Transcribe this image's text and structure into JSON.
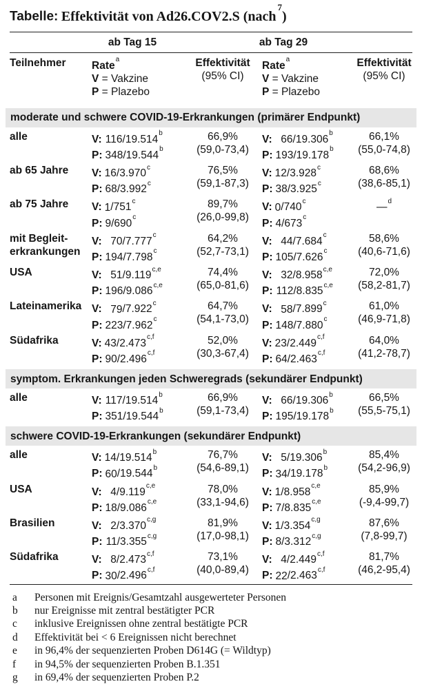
{
  "title": {
    "label": "Tabelle:",
    "text": "Effektivität von Ad26.COV2.S (nach",
    "ref": "7",
    "close": ")"
  },
  "columns": {
    "group_day15": "ab Tag 15",
    "group_day29": "ab Tag 29",
    "participant": "Teilnehmer",
    "rate": "Rate",
    "rate_sup": "a",
    "v_key": "V",
    "v_val": "= Vakzine",
    "p_key": "P",
    "p_val": "= Plazebo",
    "effectiveness": "Effektivität",
    "ci": "(95% CI)"
  },
  "sections": [
    {
      "title": "moderate und schwere COVID-19-Erkrankungen (primärer Endpunkt)",
      "rows": [
        {
          "label": "alle",
          "d15": {
            "v": [
              "116",
              "19.514",
              "b"
            ],
            "p": [
              "348",
              "19.544",
              "b"
            ],
            "eff": "66,9%",
            "eff_sup": "",
            "ci": "(59,0-73,4)"
          },
          "d29": {
            "v": [
              "66",
              "19.306",
              "b"
            ],
            "p": [
              "193",
              "19.178",
              "b"
            ],
            "eff": "66,1%",
            "eff_sup": "",
            "ci": "(55,0-74,8)"
          }
        },
        {
          "label": "ab 65 Jahre",
          "d15": {
            "v": [
              "16",
              "3.970",
              "c"
            ],
            "p": [
              "68",
              "3.992",
              "c"
            ],
            "eff": "76,5%",
            "eff_sup": "",
            "ci": "(59,1-87,3)"
          },
          "d29": {
            "v": [
              "12",
              "3.928",
              "c"
            ],
            "p": [
              "38",
              "3.925",
              "c"
            ],
            "eff": "68,6%",
            "eff_sup": "",
            "ci": "(38,6-85,1)"
          }
        },
        {
          "label": "ab 75 Jahre",
          "d15": {
            "v": [
              "1",
              "751",
              "c"
            ],
            "p": [
              "9",
              "690",
              "c"
            ],
            "eff": "89,7%",
            "eff_sup": "",
            "ci": "(26,0-99,8)"
          },
          "d29": {
            "v": [
              "0",
              "740",
              "c"
            ],
            "p": [
              "4",
              "673",
              "c"
            ],
            "eff": "—",
            "eff_sup": "d",
            "ci": ""
          }
        },
        {
          "label": "mit Begleit-\nerkrankungen",
          "d15": {
            "v": [
              "70",
              "7.777",
              "c"
            ],
            "p": [
              "194",
              "7.798",
              "c"
            ],
            "eff": "64,2%",
            "eff_sup": "",
            "ci": "(52,7-73,1)"
          },
          "d29": {
            "v": [
              "44",
              "7.684",
              "c"
            ],
            "p": [
              "105",
              "7.626",
              "c"
            ],
            "eff": "58,6%",
            "eff_sup": "",
            "ci": "(40,6-71,6)"
          }
        },
        {
          "label": "USA",
          "d15": {
            "v": [
              "51",
              "9.119",
              "c,e"
            ],
            "p": [
              "196",
              "9.086",
              "c,e"
            ],
            "eff": "74,4%",
            "eff_sup": "",
            "ci": "(65,0-81,6)"
          },
          "d29": {
            "v": [
              "32",
              "8.958",
              "c,e"
            ],
            "p": [
              "112",
              "8.835",
              "c,e"
            ],
            "eff": "72,0%",
            "eff_sup": "",
            "ci": "(58,2-81,7)"
          }
        },
        {
          "label": "Lateinamerika",
          "d15": {
            "v": [
              "79",
              "7.922",
              "c"
            ],
            "p": [
              "223",
              "7.962",
              "c"
            ],
            "eff": "64,7%",
            "eff_sup": "",
            "ci": "(54,1-73,0)"
          },
          "d29": {
            "v": [
              "58",
              "7.899",
              "c"
            ],
            "p": [
              "148",
              "7.880",
              "c"
            ],
            "eff": "61,0%",
            "eff_sup": "",
            "ci": "(46,9-71,8)"
          }
        },
        {
          "label": "Südafrika",
          "d15": {
            "v": [
              "43",
              "2.473",
              "c,f"
            ],
            "p": [
              "90",
              "2.496",
              "c,f"
            ],
            "eff": "52,0%",
            "eff_sup": "",
            "ci": "(30,3-67,4)"
          },
          "d29": {
            "v": [
              "23",
              "2.449",
              "c,f"
            ],
            "p": [
              "64",
              "2.463",
              "c,f"
            ],
            "eff": "64,0%",
            "eff_sup": "",
            "ci": "(41,2-78,7)"
          }
        }
      ]
    },
    {
      "title": "symptom. Erkrankungen jeden Schweregrads (sekundärer Endpunkt)",
      "rows": [
        {
          "label": "alle",
          "d15": {
            "v": [
              "117",
              "19.514",
              "b"
            ],
            "p": [
              "351",
              "19.544",
              "b"
            ],
            "eff": "66,9%",
            "eff_sup": "",
            "ci": "(59,1-73,4)"
          },
          "d29": {
            "v": [
              "66",
              "19.306",
              "b"
            ],
            "p": [
              "195",
              "19.178",
              "b"
            ],
            "eff": "66,5%",
            "eff_sup": "",
            "ci": "(55,5-75,1)"
          }
        }
      ]
    },
    {
      "title": "schwere COVID-19-Erkrankungen (sekundärer Endpunkt)",
      "rows": [
        {
          "label": "alle",
          "d15": {
            "v": [
              "14",
              "19.514",
              "b"
            ],
            "p": [
              "60",
              "19.544",
              "b"
            ],
            "eff": "76,7%",
            "eff_sup": "",
            "ci": "(54,6-89,1)"
          },
          "d29": {
            "v": [
              "5",
              "19.306",
              "b"
            ],
            "p": [
              "34",
              "19.178",
              "b"
            ],
            "eff": "85,4%",
            "eff_sup": "",
            "ci": "(54,2-96,9)"
          }
        },
        {
          "label": "USA",
          "d15": {
            "v": [
              "4",
              "9.119",
              "c,e"
            ],
            "p": [
              "18",
              "9.086",
              "c,e"
            ],
            "eff": "78,0%",
            "eff_sup": "",
            "ci": "(33,1-94,6)"
          },
          "d29": {
            "v": [
              "1",
              "8.958",
              "c,e"
            ],
            "p": [
              "7",
              "8.835",
              "c,e"
            ],
            "eff": "85,9%",
            "eff_sup": "",
            "ci": "(-9,4-99,7)"
          }
        },
        {
          "label": "Brasilien",
          "d15": {
            "v": [
              "2",
              "3.370",
              "c,g"
            ],
            "p": [
              "11",
              "3.355",
              "c,g"
            ],
            "eff": "81,9%",
            "eff_sup": "",
            "ci": "(17,0-98,1)"
          },
          "d29": {
            "v": [
              "1",
              "3.354",
              "c,g"
            ],
            "p": [
              "8",
              "3.312",
              "c,g"
            ],
            "eff": "87,6%",
            "eff_sup": "",
            "ci": "(7,8-99,7)"
          }
        },
        {
          "label": "Südafrika",
          "d15": {
            "v": [
              "8",
              "2.473",
              "c,f"
            ],
            "p": [
              "30",
              "2.496",
              "c,f"
            ],
            "eff": "73,1%",
            "eff_sup": "",
            "ci": "(40,0-89,4)"
          },
          "d29": {
            "v": [
              "4",
              "2.449",
              "c,f"
            ],
            "p": [
              "22",
              "2.463",
              "c,f"
            ],
            "eff": "81,7%",
            "eff_sup": "",
            "ci": "(46,2-95,4)"
          }
        }
      ]
    }
  ],
  "footnotes": [
    {
      "key": "a",
      "text": "Personen mit Ereignis/Gesamtzahl ausgewerteter Personen"
    },
    {
      "key": "b",
      "text": "nur Ereignisse mit zentral bestätigter PCR"
    },
    {
      "key": "c",
      "text": "inklusive Ereignissen ohne zentral bestätigte PCR"
    },
    {
      "key": "d",
      "text": "Effektivität bei < 6 Ereignissen nicht berechnet"
    },
    {
      "key": "e",
      "text": "in 96,4% der sequenzierten Proben D614G (= Wildtyp)"
    },
    {
      "key": "f",
      "text": "in 94,5% der sequenzierten Proben B.1.351"
    },
    {
      "key": "g",
      "text": "in 69,4% der sequenzierten Proben P.2"
    }
  ]
}
